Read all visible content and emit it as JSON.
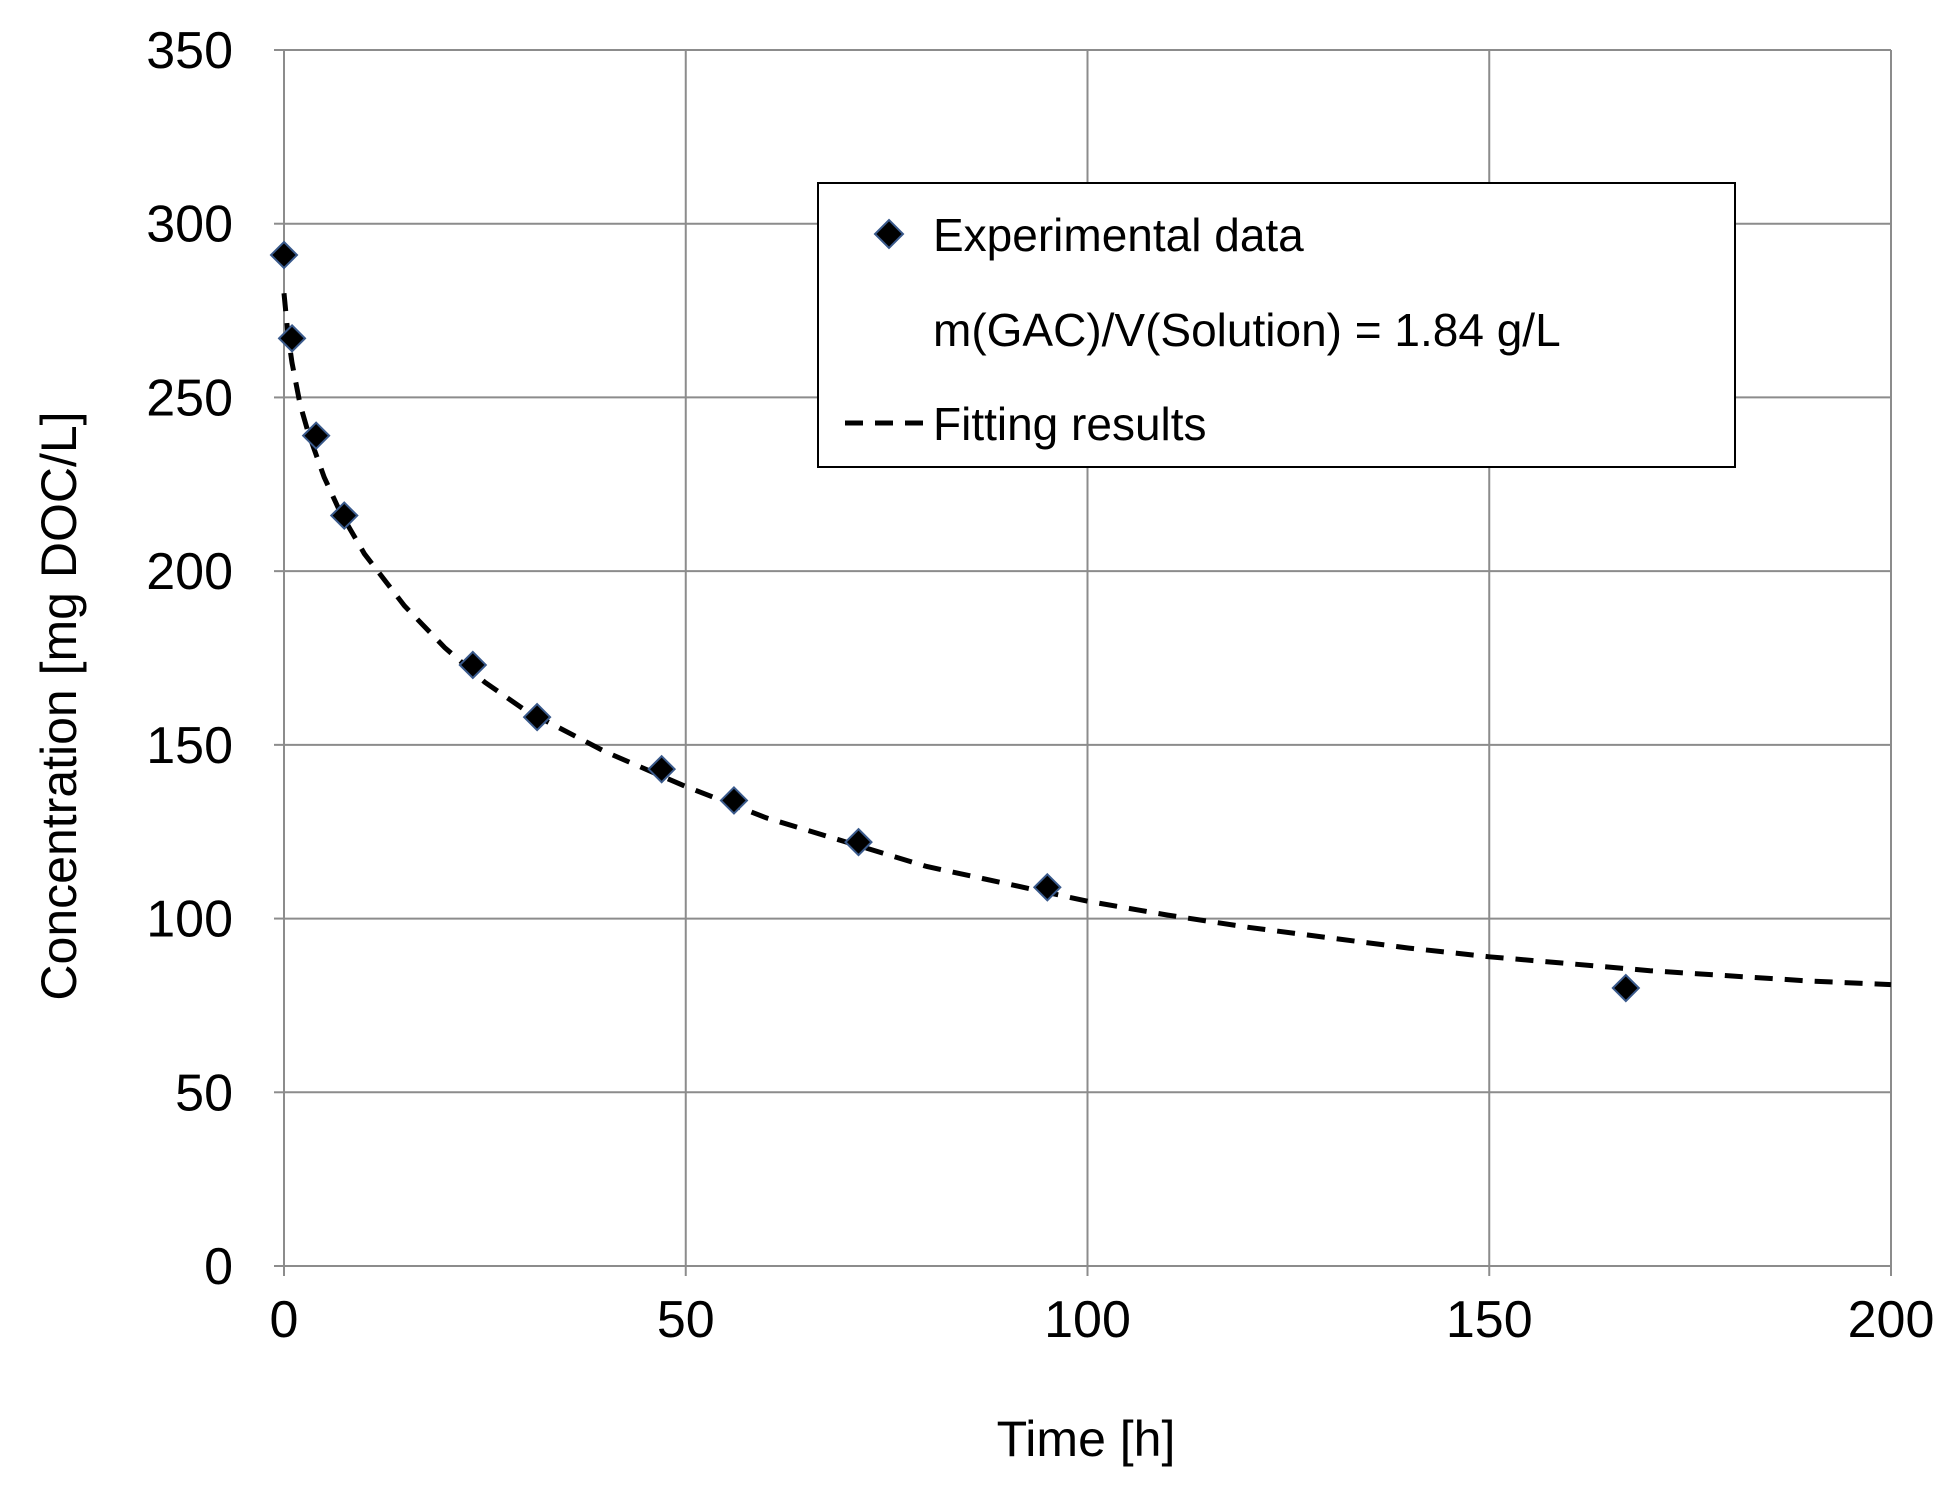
{
  "chart_data": {
    "type": "scatter",
    "title": "",
    "xlabel": "Time [h]",
    "ylabel": "Concentration [mg DOC/L]",
    "xlim": [
      0,
      200
    ],
    "ylim": [
      0,
      350
    ],
    "x_ticks": [
      0,
      50,
      100,
      150,
      200
    ],
    "y_ticks": [
      0,
      50,
      100,
      150,
      200,
      250,
      300,
      350
    ],
    "grid": true,
    "legend_position": "top-right",
    "annotation": "m(GAC)/V(Solution) = 1.84 g/L",
    "series": [
      {
        "name": "Experimental data",
        "kind": "scatter",
        "marker": "diamond",
        "color": "#000000",
        "edge_color": "#3a5a8c",
        "x": [
          0,
          1,
          4,
          7.5,
          23.5,
          31.5,
          47,
          56,
          71.5,
          95,
          167
        ],
        "y": [
          291,
          267,
          239,
          216,
          173,
          158,
          143,
          134,
          122,
          109,
          80
        ]
      },
      {
        "name": "Fitting results",
        "kind": "line",
        "style": "dashed",
        "color": "#000000",
        "x": [
          0,
          0.5,
          1,
          2,
          3,
          5,
          7,
          10,
          15,
          20,
          25,
          30,
          40,
          50,
          60,
          70,
          80,
          90,
          100,
          110,
          120,
          130,
          140,
          150,
          160,
          170,
          180,
          190,
          200
        ],
        "y": [
          280,
          268,
          260,
          248,
          240,
          227,
          217,
          205,
          190,
          178,
          168,
          160,
          148,
          138,
          129,
          122,
          115,
          110,
          105,
          101,
          97.5,
          94.5,
          91.5,
          89,
          87,
          85,
          83.5,
          82,
          81
        ]
      }
    ]
  }
}
